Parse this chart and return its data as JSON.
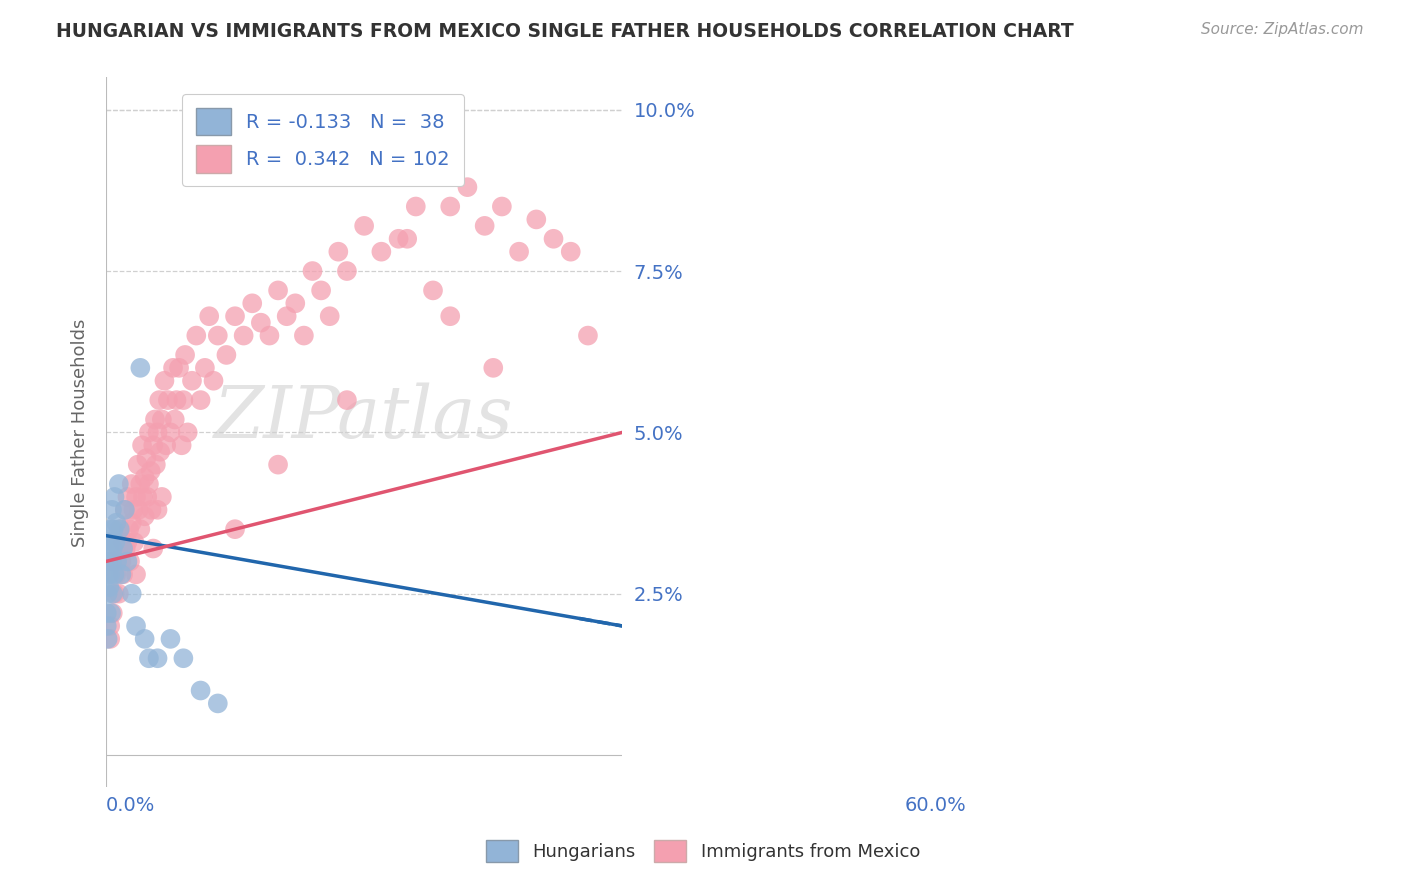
{
  "title": "HUNGARIAN VS IMMIGRANTS FROM MEXICO SINGLE FATHER HOUSEHOLDS CORRELATION CHART",
  "source": "Source: ZipAtlas.com",
  "ylabel": "Single Father Households",
  "xmin": 0.0,
  "xmax": 0.6,
  "ymin": -0.005,
  "ymax": 0.105,
  "yticks": [
    0.0,
    0.025,
    0.05,
    0.075,
    0.1
  ],
  "ytick_labels": [
    "",
    "2.5%",
    "5.0%",
    "7.5%",
    "10.0%"
  ],
  "hungarian_color": "#92b4d7",
  "mexican_color": "#f4a0b0",
  "background_color": "#ffffff",
  "grid_color": "#d0d0d0",
  "watermark": "ZIPatlas",
  "hungarian_scatter": [
    [
      0.001,
      0.02
    ],
    [
      0.001,
      0.022
    ],
    [
      0.002,
      0.018
    ],
    [
      0.002,
      0.025
    ],
    [
      0.003,
      0.028
    ],
    [
      0.003,
      0.03
    ],
    [
      0.004,
      0.032
    ],
    [
      0.004,
      0.026
    ],
    [
      0.005,
      0.033
    ],
    [
      0.005,
      0.028
    ],
    [
      0.006,
      0.035
    ],
    [
      0.006,
      0.022
    ],
    [
      0.007,
      0.038
    ],
    [
      0.007,
      0.03
    ],
    [
      0.008,
      0.032
    ],
    [
      0.008,
      0.025
    ],
    [
      0.009,
      0.035
    ],
    [
      0.01,
      0.04
    ],
    [
      0.01,
      0.028
    ],
    [
      0.011,
      0.033
    ],
    [
      0.012,
      0.036
    ],
    [
      0.013,
      0.03
    ],
    [
      0.015,
      0.042
    ],
    [
      0.016,
      0.035
    ],
    [
      0.018,
      0.028
    ],
    [
      0.02,
      0.032
    ],
    [
      0.022,
      0.038
    ],
    [
      0.025,
      0.03
    ],
    [
      0.03,
      0.025
    ],
    [
      0.035,
      0.02
    ],
    [
      0.04,
      0.06
    ],
    [
      0.045,
      0.018
    ],
    [
      0.05,
      0.015
    ],
    [
      0.06,
      0.015
    ],
    [
      0.075,
      0.018
    ],
    [
      0.09,
      0.015
    ],
    [
      0.11,
      0.01
    ],
    [
      0.13,
      0.008
    ]
  ],
  "mexican_scatter": [
    [
      0.005,
      0.02
    ],
    [
      0.005,
      0.018
    ],
    [
      0.008,
      0.022
    ],
    [
      0.01,
      0.025
    ],
    [
      0.01,
      0.03
    ],
    [
      0.012,
      0.028
    ],
    [
      0.015,
      0.032
    ],
    [
      0.015,
      0.025
    ],
    [
      0.017,
      0.035
    ],
    [
      0.018,
      0.03
    ],
    [
      0.02,
      0.033
    ],
    [
      0.02,
      0.028
    ],
    [
      0.022,
      0.038
    ],
    [
      0.023,
      0.032
    ],
    [
      0.025,
      0.04
    ],
    [
      0.025,
      0.033
    ],
    [
      0.027,
      0.035
    ],
    [
      0.028,
      0.03
    ],
    [
      0.03,
      0.042
    ],
    [
      0.03,
      0.036
    ],
    [
      0.032,
      0.038
    ],
    [
      0.033,
      0.033
    ],
    [
      0.035,
      0.04
    ],
    [
      0.035,
      0.028
    ],
    [
      0.037,
      0.045
    ],
    [
      0.038,
      0.038
    ],
    [
      0.04,
      0.042
    ],
    [
      0.04,
      0.035
    ],
    [
      0.042,
      0.048
    ],
    [
      0.043,
      0.04
    ],
    [
      0.045,
      0.043
    ],
    [
      0.045,
      0.037
    ],
    [
      0.047,
      0.046
    ],
    [
      0.048,
      0.04
    ],
    [
      0.05,
      0.05
    ],
    [
      0.05,
      0.042
    ],
    [
      0.052,
      0.044
    ],
    [
      0.053,
      0.038
    ],
    [
      0.055,
      0.048
    ],
    [
      0.055,
      0.032
    ],
    [
      0.057,
      0.052
    ],
    [
      0.058,
      0.045
    ],
    [
      0.06,
      0.05
    ],
    [
      0.06,
      0.038
    ],
    [
      0.062,
      0.055
    ],
    [
      0.063,
      0.047
    ],
    [
      0.065,
      0.052
    ],
    [
      0.065,
      0.04
    ],
    [
      0.068,
      0.058
    ],
    [
      0.07,
      0.048
    ],
    [
      0.072,
      0.055
    ],
    [
      0.075,
      0.05
    ],
    [
      0.078,
      0.06
    ],
    [
      0.08,
      0.052
    ],
    [
      0.082,
      0.055
    ],
    [
      0.085,
      0.06
    ],
    [
      0.088,
      0.048
    ],
    [
      0.09,
      0.055
    ],
    [
      0.092,
      0.062
    ],
    [
      0.095,
      0.05
    ],
    [
      0.1,
      0.058
    ],
    [
      0.105,
      0.065
    ],
    [
      0.11,
      0.055
    ],
    [
      0.115,
      0.06
    ],
    [
      0.12,
      0.068
    ],
    [
      0.125,
      0.058
    ],
    [
      0.13,
      0.065
    ],
    [
      0.14,
      0.062
    ],
    [
      0.15,
      0.068
    ],
    [
      0.16,
      0.065
    ],
    [
      0.17,
      0.07
    ],
    [
      0.18,
      0.067
    ],
    [
      0.19,
      0.065
    ],
    [
      0.2,
      0.072
    ],
    [
      0.21,
      0.068
    ],
    [
      0.22,
      0.07
    ],
    [
      0.23,
      0.065
    ],
    [
      0.24,
      0.075
    ],
    [
      0.25,
      0.072
    ],
    [
      0.26,
      0.068
    ],
    [
      0.27,
      0.078
    ],
    [
      0.28,
      0.075
    ],
    [
      0.3,
      0.082
    ],
    [
      0.32,
      0.078
    ],
    [
      0.34,
      0.08
    ],
    [
      0.36,
      0.085
    ],
    [
      0.38,
      0.09
    ],
    [
      0.4,
      0.085
    ],
    [
      0.42,
      0.088
    ],
    [
      0.44,
      0.082
    ],
    [
      0.46,
      0.085
    ],
    [
      0.48,
      0.078
    ],
    [
      0.5,
      0.083
    ],
    [
      0.52,
      0.08
    ],
    [
      0.54,
      0.078
    ],
    [
      0.56,
      0.065
    ],
    [
      0.35,
      0.08
    ],
    [
      0.4,
      0.068
    ],
    [
      0.2,
      0.045
    ],
    [
      0.28,
      0.055
    ],
    [
      0.15,
      0.035
    ],
    [
      0.38,
      0.072
    ],
    [
      0.45,
      0.06
    ]
  ],
  "hung_line_x": [
    0.0,
    0.6
  ],
  "hung_line_y": [
    0.034,
    0.02
  ],
  "mex_line_x": [
    0.0,
    0.6
  ],
  "mex_line_y": [
    0.03,
    0.05
  ]
}
